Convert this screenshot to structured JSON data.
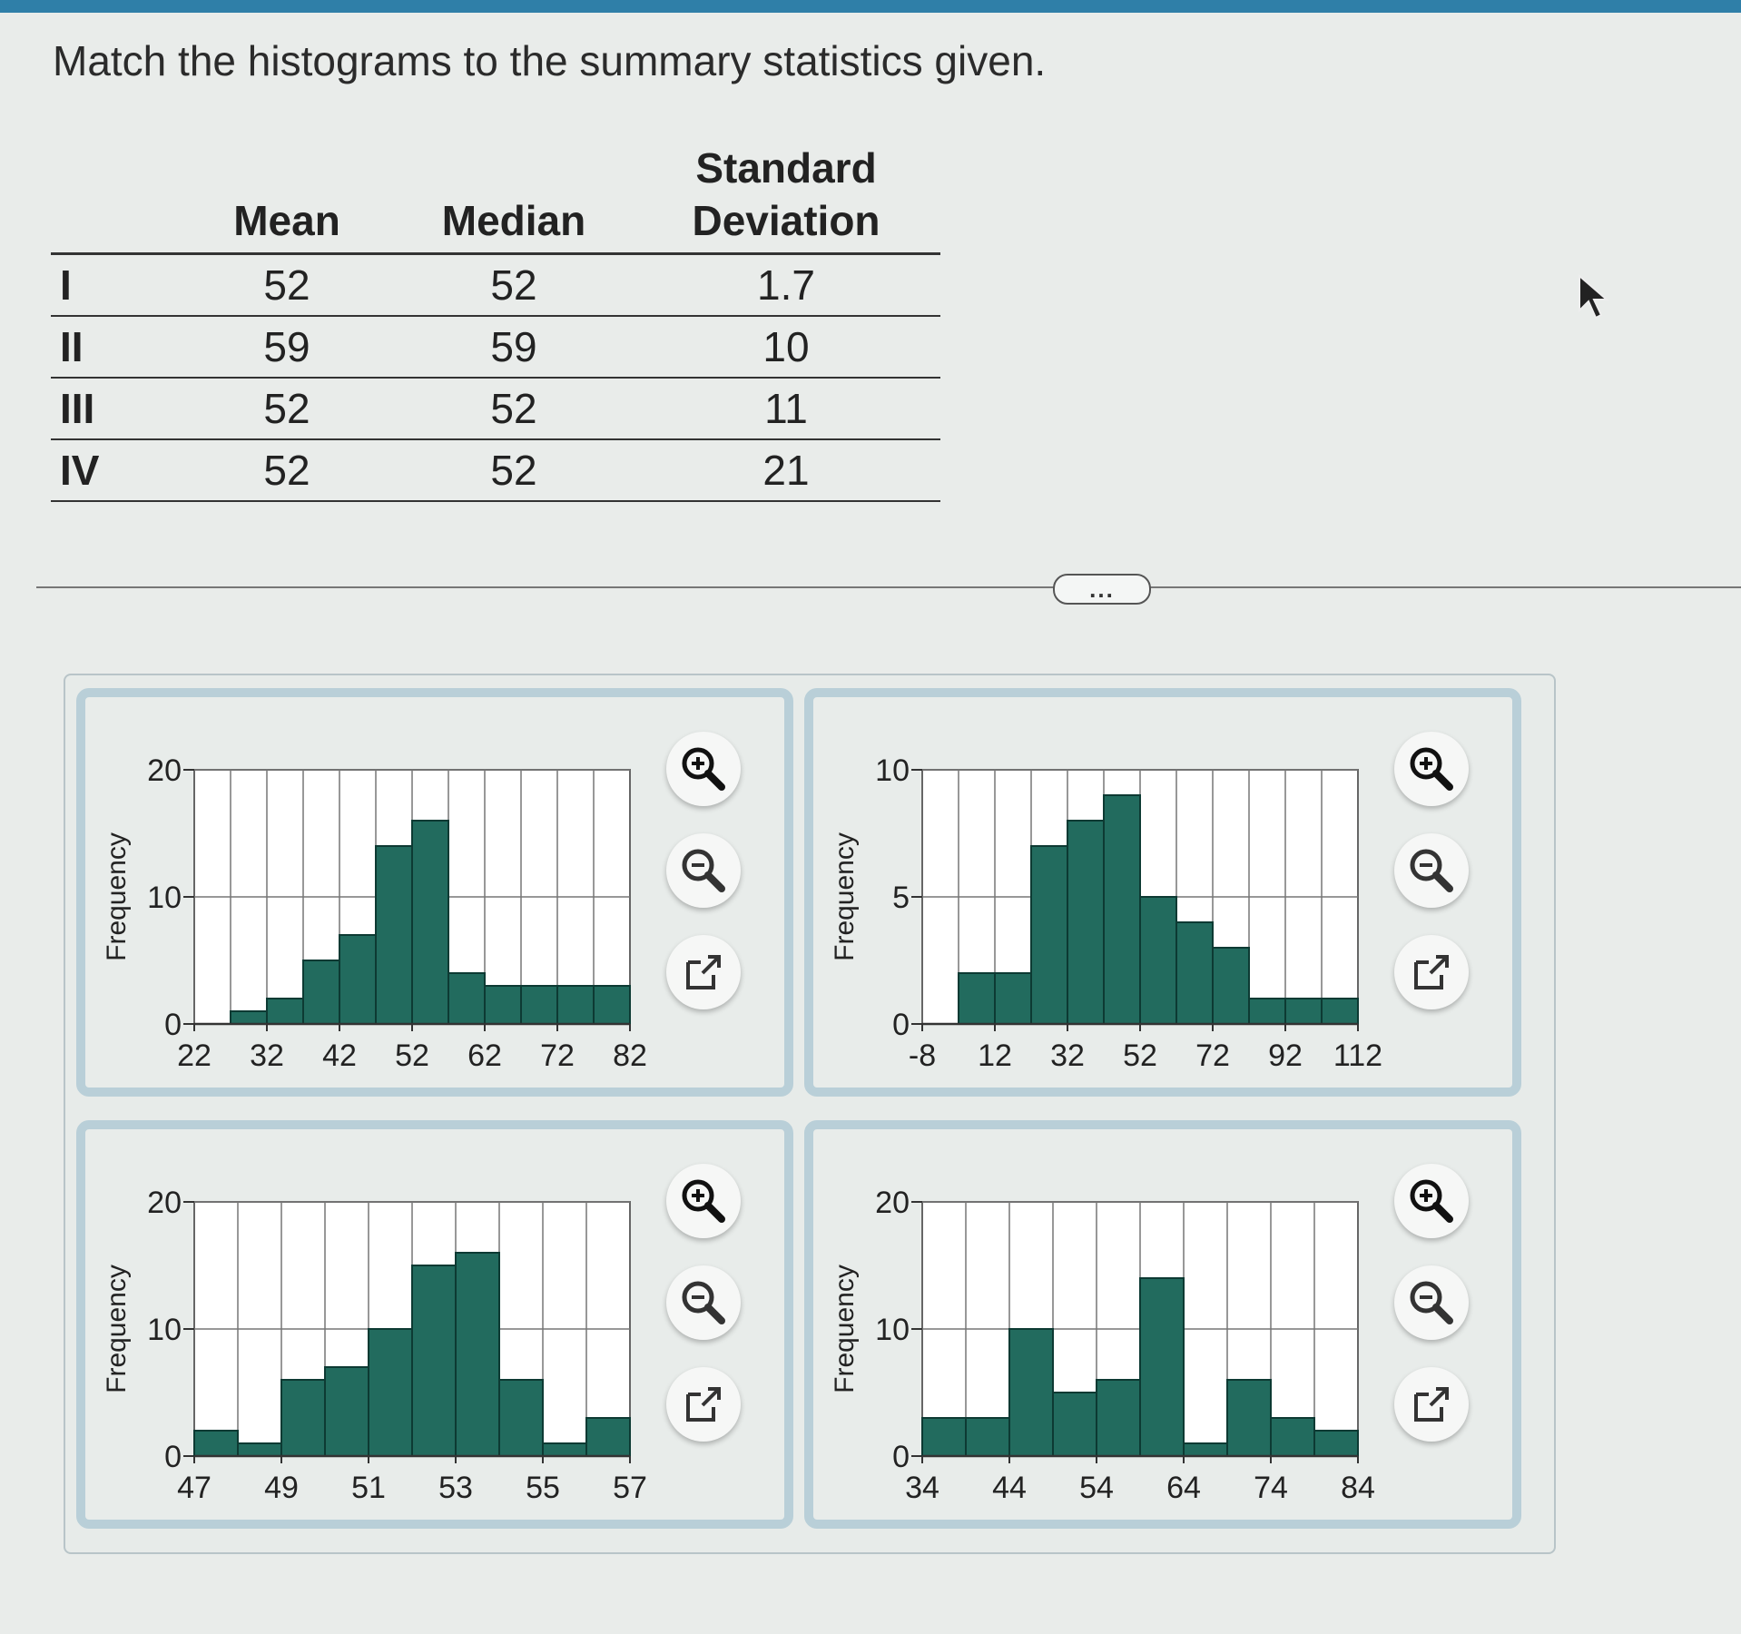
{
  "prompt": "Match the histograms to the summary statistics given.",
  "table": {
    "headers": [
      "Mean",
      "Median",
      "Standard Deviation"
    ],
    "rows": [
      {
        "label": "I",
        "mean": "52",
        "median": "52",
        "sd": "1.7"
      },
      {
        "label": "II",
        "mean": "59",
        "median": "59",
        "sd": "10"
      },
      {
        "label": "III",
        "mean": "52",
        "median": "52",
        "sd": "11"
      },
      {
        "label": "IV",
        "mean": "52",
        "median": "52",
        "sd": "21"
      }
    ]
  },
  "more_button": "...",
  "icons": [
    "zoom-in-icon",
    "zoom-out-icon",
    "external-link-icon"
  ],
  "colors": {
    "bar": "#226b5e",
    "panel_border": "#b9cfd8"
  },
  "chart_data": [
    {
      "type": "bar",
      "ylabel": "Frequency",
      "ylim": [
        0,
        20
      ],
      "yticks": [
        0,
        10,
        20
      ],
      "bin_edges": [
        22,
        27,
        32,
        37,
        42,
        47,
        52,
        57,
        62,
        67,
        72,
        77,
        82
      ],
      "xtick_labels": [
        "22",
        "32",
        "42",
        "52",
        "62",
        "72",
        "82"
      ],
      "values": [
        0,
        1,
        2,
        5,
        7,
        14,
        16,
        4,
        3,
        3,
        3,
        3
      ]
    },
    {
      "type": "bar",
      "ylabel": "Frequency",
      "ylim": [
        0,
        10
      ],
      "yticks": [
        0,
        5,
        10
      ],
      "bin_edges": [
        -8,
        2,
        12,
        22,
        32,
        42,
        52,
        62,
        72,
        82,
        92,
        102,
        112
      ],
      "xtick_labels": [
        "-8",
        "12",
        "32",
        "52",
        "72",
        "92",
        "112"
      ],
      "values": [
        0,
        2,
        2,
        7,
        8,
        9,
        5,
        4,
        3,
        1,
        1,
        1
      ]
    },
    {
      "type": "bar",
      "ylabel": "Frequency",
      "ylim": [
        0,
        20
      ],
      "yticks": [
        0,
        10,
        20
      ],
      "bin_edges": [
        47,
        48,
        49,
        50,
        51,
        52,
        53,
        54,
        55,
        56,
        57
      ],
      "xtick_labels": [
        "47",
        "49",
        "51",
        "53",
        "55",
        "57"
      ],
      "values": [
        2,
        1,
        6,
        7,
        10,
        15,
        16,
        6,
        1,
        3
      ]
    },
    {
      "type": "bar",
      "ylabel": "Frequency",
      "ylim": [
        0,
        20
      ],
      "yticks": [
        0,
        10,
        20
      ],
      "bin_edges": [
        34,
        39,
        44,
        49,
        54,
        59,
        64,
        69,
        74,
        79,
        84
      ],
      "xtick_labels": [
        "34",
        "44",
        "54",
        "64",
        "74",
        "84"
      ],
      "values": [
        3,
        3,
        10,
        5,
        6,
        14,
        1,
        6,
        3,
        2
      ]
    }
  ]
}
